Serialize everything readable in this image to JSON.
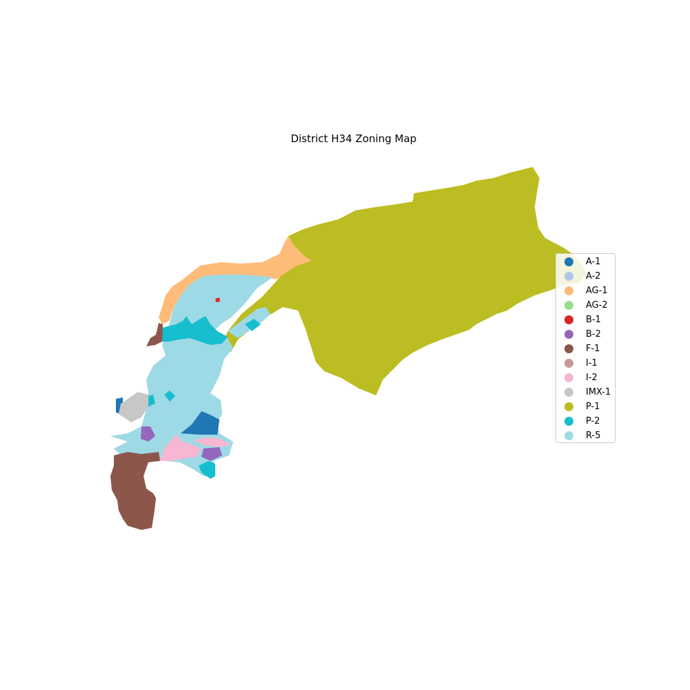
{
  "title": "District H34 Zoning Map",
  "legend": {
    "items": [
      {
        "label": "A-1",
        "color": "#1f77b4"
      },
      {
        "label": "A-2",
        "color": "#aec7e8"
      },
      {
        "label": "AG-1",
        "color": "#ffbb78"
      },
      {
        "label": "AG-2",
        "color": "#98df8a"
      },
      {
        "label": "B-1",
        "color": "#d62728"
      },
      {
        "label": "B-2",
        "color": "#9467bd"
      },
      {
        "label": "F-1",
        "color": "#8c564b"
      },
      {
        "label": "I-1",
        "color": "#c49c94"
      },
      {
        "label": "I-2",
        "color": "#f7b6d2"
      },
      {
        "label": "IMX-1",
        "color": "#c7c7c7"
      },
      {
        "label": "P-1",
        "color": "#bcbd22"
      },
      {
        "label": "P-2",
        "color": "#17becf"
      },
      {
        "label": "R-5",
        "color": "#9edae5"
      }
    ]
  }
}
